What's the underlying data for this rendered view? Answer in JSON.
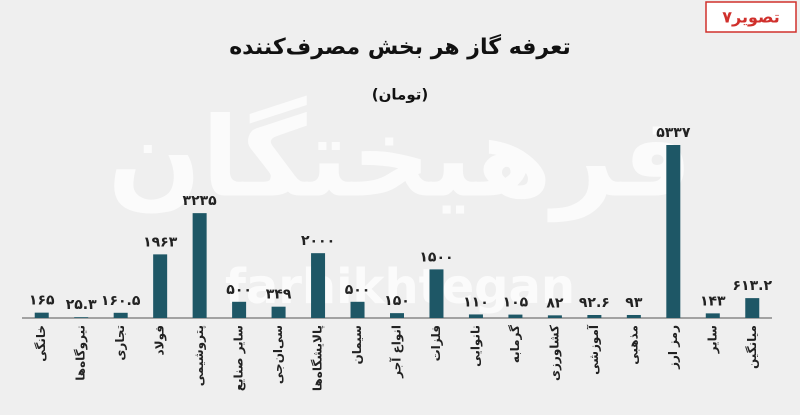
{
  "chart_data": {
    "type": "bar",
    "title": "تعرفه گاز هر بخش مصرف‌کننده",
    "subtitle": "(تومان)",
    "figure_tag": "تصویر۷",
    "watermark": "فرهیختگان",
    "watermark_latin": "farhikhtegan",
    "color": "#1e5766",
    "categories": [
      "خانگی",
      "نیروگاه‌ها",
      "تجاری",
      "فولاد",
      "پتروشیمی",
      "سایر صنایع",
      "سی‌ان‌جی",
      "پالایشگاه‌ها",
      "سیمان",
      "انواع آجر",
      "فلزات",
      "نانوایی",
      "گرمابه",
      "کشاورزی",
      "آموزشی",
      "مذهبی",
      "رمز ارز",
      "سایر",
      "میانگین"
    ],
    "values": [
      165,
      25.3,
      160.5,
      1963,
      3235,
      500,
      349,
      2000,
      500,
      150,
      1500,
      110,
      105,
      82,
      92.6,
      93,
      5337,
      143,
      613.2
    ],
    "value_labels": [
      "۱۶۵",
      "۲۵.۳",
      "۱۶۰.۵",
      "۱۹۶۳",
      "۳۲۳۵",
      "۵۰۰",
      "۳۴۹",
      "۲۰۰۰",
      "۵۰۰",
      "۱۵۰",
      "۱۵۰۰",
      "۱۱۰",
      "۱۰۵",
      "۸۲",
      "۹۲.۶",
      "۹۳",
      "۵۳۳۷",
      "۱۴۳",
      "۶۱۳.۲"
    ]
  }
}
